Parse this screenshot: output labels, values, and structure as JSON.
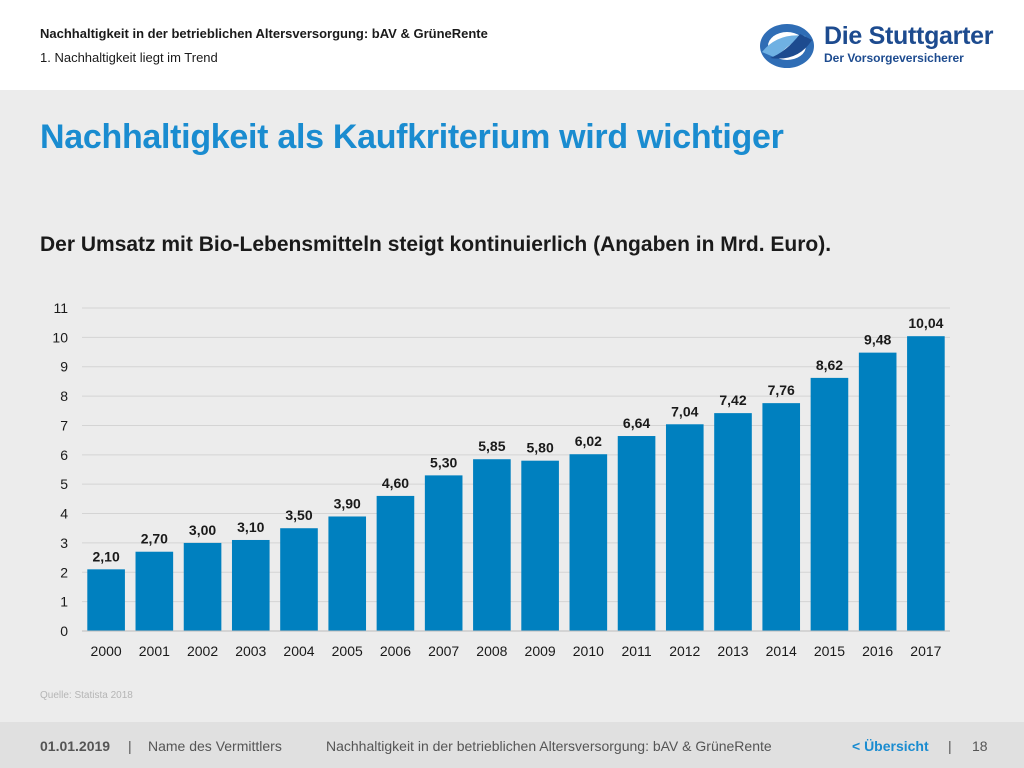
{
  "header": {
    "title": "Nachhaltigkeit in der betrieblichen Altersversorgung: bAV & GrüneRente",
    "subtitle": "1. Nachhaltigkeit liegt im Trend"
  },
  "logo": {
    "name": "Die Stuttgarter",
    "tagline": "Der Vorsorgeversicherer"
  },
  "main": {
    "title": "Nachhaltigkeit als Kaufkriterium wird wichtiger",
    "chart_heading": "Der Umsatz mit Bio-Lebensmitteln steigt kontinuierlich (Angaben in Mrd. Euro).",
    "source": "Quelle: Statista 2018"
  },
  "chart_data": {
    "type": "bar",
    "categories": [
      "2000",
      "2001",
      "2002",
      "2003",
      "2004",
      "2005",
      "2006",
      "2007",
      "2008",
      "2009",
      "2010",
      "2011",
      "2012",
      "2013",
      "2014",
      "2015",
      "2016",
      "2017"
    ],
    "values": [
      2.1,
      2.7,
      3.0,
      3.1,
      3.5,
      3.9,
      4.6,
      5.3,
      5.85,
      5.8,
      6.02,
      6.64,
      7.04,
      7.42,
      7.76,
      8.62,
      9.48,
      10.04
    ],
    "value_labels": [
      "2,10",
      "2,70",
      "3,00",
      "3,10",
      "3,50",
      "3,90",
      "4,60",
      "5,30",
      "5,85",
      "5,80",
      "6,02",
      "6,64",
      "7,04",
      "7,42",
      "7,76",
      "8,62",
      "9,48",
      "10,04"
    ],
    "y_ticks": [
      "0",
      "1",
      "2",
      "3",
      "4",
      "5",
      "6",
      "7",
      "8",
      "9",
      "10",
      "11"
    ],
    "ylim": [
      0,
      11
    ],
    "grid": true,
    "bar_color": "#0080bf",
    "title": "",
    "xlabel": "",
    "ylabel": ""
  },
  "footer": {
    "date": "01.01.2019",
    "separator": "|",
    "agent": "Name des Vermittlers",
    "title": "Nachhaltigkeit in der betrieblichen Altersversorgung: bAV & GrüneRente",
    "overview_link": "< Übersicht",
    "page": "18"
  },
  "colors": {
    "accent": "#1a8cd0",
    "brand": "#1d4b8f",
    "bar": "#0080bf",
    "background": "#ececec"
  }
}
